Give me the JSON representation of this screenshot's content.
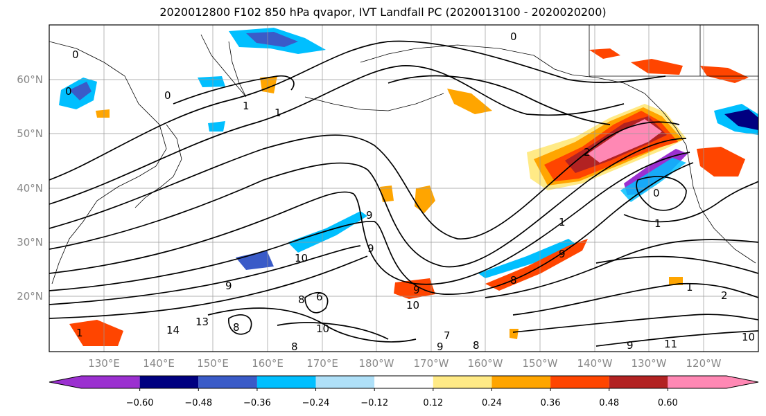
{
  "title": "2020012800 F102 850 hPa qvapor, IVT Landfall PC (2020013100 - 2020020200)",
  "lat_labels": [
    "60°N",
    "50°N",
    "40°N",
    "30°N",
    "20°N"
  ],
  "lon_labels": [
    "130°E",
    "140°E",
    "150°E",
    "160°E",
    "170°E",
    "180°W",
    "170°W",
    "160°W",
    "150°W",
    "140°W",
    "130°W",
    "120°W"
  ],
  "colorbar": {
    "colors": [
      "#9b30d0",
      "#000080",
      "#3a5bc8",
      "#00bfff",
      "#afe0f8",
      "#ffffff",
      "#ffea86",
      "#ffa500",
      "#ff4500",
      "#b22222",
      "#ff88b4"
    ],
    "tick_labels": [
      "-0.60",
      "-0.48",
      "-0.36",
      "-0.24",
      "-0.12",
      "0.12",
      "0.24",
      "0.36",
      "0.48",
      "0.60"
    ]
  },
  "contour_labels": [
    "0",
    "0",
    "0",
    "1",
    "0",
    "2",
    "1",
    "9",
    "9",
    "10",
    "9",
    "8",
    "6",
    "8",
    "10",
    "14",
    "13",
    "1",
    "9",
    "10",
    "7",
    "8",
    "9",
    "8",
    "1",
    "9",
    "1",
    "2",
    "9",
    "11",
    "10",
    "1",
    "0",
    "8"
  ]
}
